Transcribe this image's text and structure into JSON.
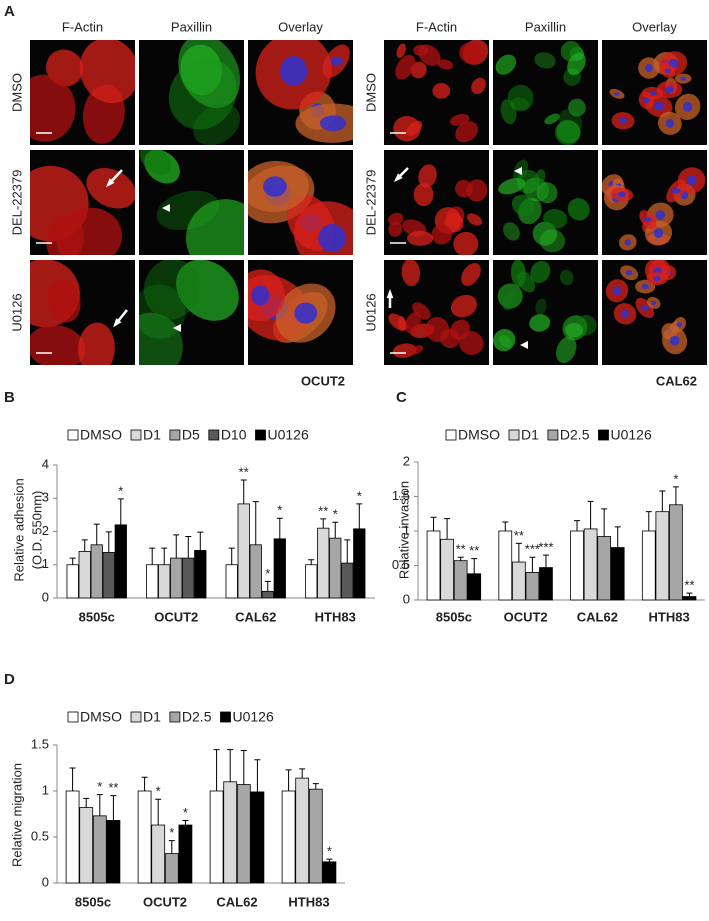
{
  "panel_labels": [
    "A",
    "B",
    "C",
    "D"
  ],
  "panel_a": {
    "blocks": [
      {
        "cell_line": "OCUT2",
        "columns": [
          "F-Actin",
          "Paxillin",
          "Overlay"
        ],
        "rows": [
          "DMSO",
          "DEL-22379",
          "U0126"
        ]
      },
      {
        "cell_line": "CAL62",
        "columns": [
          "F-Actin",
          "Paxillin",
          "Overlay"
        ],
        "rows": [
          "DMSO",
          "DEL-22379",
          "U0126"
        ]
      }
    ]
  },
  "chart_data": [
    {
      "type": "bar",
      "ylabel": [
        "Relative adhesion",
        "(O.D. 550nm)"
      ],
      "categories": [
        "8505c",
        "OCUT2",
        "CAL62",
        "HTH83"
      ],
      "ylim": [
        0,
        4
      ],
      "yticks": [
        0,
        1,
        2,
        3,
        4
      ],
      "series": [
        {
          "name": "DMSO",
          "color": "#ffffff",
          "values": [
            1.0,
            1.0,
            1.0,
            1.0
          ],
          "errors": [
            0.2,
            0.5,
            0.5,
            0.15
          ],
          "significance": [
            null,
            null,
            null,
            null
          ]
        },
        {
          "name": "D1",
          "color": "#d9d9d9",
          "values": [
            1.4,
            1.0,
            2.83,
            2.1
          ],
          "errors": [
            0.35,
            0.5,
            0.72,
            0.28
          ],
          "significance": [
            null,
            null,
            "**",
            "**"
          ]
        },
        {
          "name": "D5",
          "color": "#a6a6a6",
          "values": [
            1.6,
            1.2,
            1.6,
            1.8
          ],
          "errors": [
            0.62,
            0.7,
            1.3,
            0.48
          ],
          "significance": [
            null,
            null,
            null,
            "*"
          ]
        },
        {
          "name": "D10",
          "color": "#595959",
          "values": [
            1.37,
            1.2,
            0.2,
            1.05
          ],
          "errors": [
            0.62,
            0.65,
            0.3,
            0.7
          ],
          "significance": [
            null,
            null,
            "*",
            null
          ]
        },
        {
          "name": "U0126",
          "color": "#000000",
          "values": [
            2.2,
            1.43,
            1.78,
            2.08
          ],
          "errors": [
            0.78,
            0.55,
            0.62,
            0.75
          ],
          "significance": [
            "*",
            null,
            "*",
            "*"
          ]
        }
      ]
    },
    {
      "type": "bar",
      "ylabel": [
        "Relative invasion"
      ],
      "categories": [
        "8505c",
        "OCUT2",
        "CAL62",
        "HTH83"
      ],
      "ylim": [
        0,
        2
      ],
      "yticks": [
        0,
        0.5,
        1,
        1.5,
        2
      ],
      "series": [
        {
          "name": "DMSO",
          "color": "#ffffff",
          "values": [
            1.0,
            1.0,
            1.0,
            1.0
          ],
          "errors": [
            0.2,
            0.13,
            0.15,
            0.28
          ],
          "significance": [
            null,
            null,
            null,
            null
          ]
        },
        {
          "name": "D1",
          "color": "#d9d9d9",
          "values": [
            0.88,
            0.55,
            1.03,
            1.28
          ],
          "errors": [
            0.3,
            0.27,
            0.4,
            0.3
          ],
          "significance": [
            null,
            "**",
            null,
            null
          ]
        },
        {
          "name": "D2.5",
          "color": "#a6a6a6",
          "values": [
            0.57,
            0.4,
            0.92,
            1.38
          ],
          "errors": [
            0.05,
            0.22,
            0.4,
            0.26
          ],
          "significance": [
            "**",
            "***",
            null,
            "*"
          ]
        },
        {
          "name": "U0126",
          "color": "#000000",
          "values": [
            0.38,
            0.47,
            0.76,
            0.05
          ],
          "errors": [
            0.22,
            0.18,
            0.3,
            0.05
          ],
          "significance": [
            "**",
            "***",
            null,
            "**"
          ]
        }
      ]
    },
    {
      "type": "bar",
      "ylabel": [
        "Relative migration"
      ],
      "categories": [
        "8505c",
        "OCUT2",
        "CAL62",
        "HTH83"
      ],
      "ylim": [
        0,
        1.5
      ],
      "yticks": [
        0,
        0.5,
        1,
        1.5
      ],
      "series": [
        {
          "name": "DMSO",
          "color": "#ffffff",
          "values": [
            1.0,
            1.0,
            1.0,
            1.0
          ],
          "errors": [
            0.25,
            0.15,
            0.45,
            0.23
          ],
          "significance": [
            null,
            null,
            null,
            null
          ]
        },
        {
          "name": "D1",
          "color": "#d9d9d9",
          "values": [
            0.82,
            0.63,
            1.1,
            1.14
          ],
          "errors": [
            0.1,
            0.28,
            0.35,
            0.1
          ],
          "significance": [
            null,
            "*",
            null,
            null
          ]
        },
        {
          "name": "D2.5",
          "color": "#a6a6a6",
          "values": [
            0.73,
            0.32,
            1.07,
            1.02
          ],
          "errors": [
            0.23,
            0.14,
            0.37,
            0.06
          ],
          "significance": [
            "*",
            "*",
            null,
            null
          ]
        },
        {
          "name": "U0126",
          "color": "#000000",
          "values": [
            0.68,
            0.63,
            0.99,
            0.23
          ],
          "errors": [
            0.27,
            0.05,
            0.35,
            0.03
          ],
          "significance": [
            "**",
            "*",
            null,
            "*"
          ]
        }
      ]
    }
  ]
}
